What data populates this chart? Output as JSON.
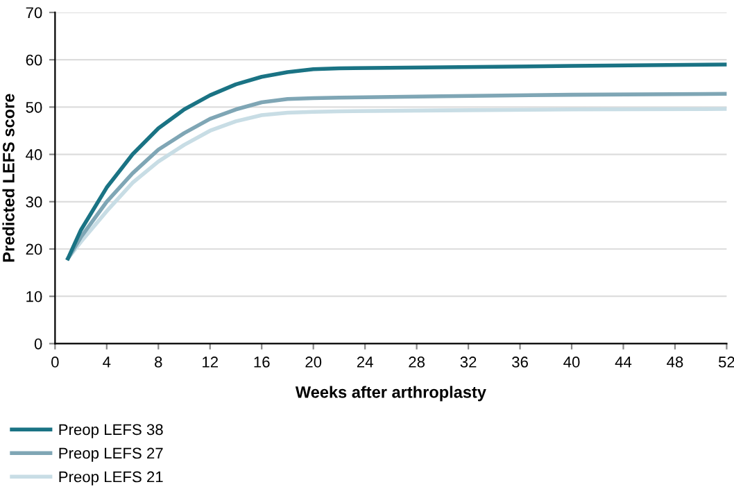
{
  "chart_data": {
    "type": "line",
    "xlabel": "Weeks after arthroplasty",
    "ylabel": "Predicted LEFS score",
    "x": [
      1,
      2,
      4,
      6,
      8,
      10,
      12,
      14,
      16,
      18,
      20,
      22,
      30,
      40,
      52
    ],
    "series": [
      {
        "name": "Preop LEFS 38",
        "color": "#1a7384",
        "values": [
          18,
          24,
          33,
          40,
          45.5,
          49.5,
          52.5,
          54.8,
          56.4,
          57.4,
          58,
          58.2,
          58.4,
          58.7,
          59
        ]
      },
      {
        "name": "Preop LEFS 27",
        "color": "#7fa6b5",
        "values": [
          18,
          22.5,
          30,
          36,
          41,
          44.5,
          47.5,
          49.5,
          51,
          51.7,
          51.9,
          52,
          52.3,
          52.6,
          52.8
        ]
      },
      {
        "name": "Preop LEFS 21",
        "color": "#c8dde5",
        "values": [
          18,
          21.5,
          28,
          34,
          38.5,
          42,
          45,
          47,
          48.3,
          48.8,
          49,
          49.1,
          49.3,
          49.5,
          49.6
        ]
      }
    ],
    "xlim": [
      0,
      52
    ],
    "xticks": [
      0,
      4,
      8,
      12,
      16,
      20,
      24,
      28,
      32,
      36,
      40,
      44,
      48,
      52
    ],
    "ylim": [
      0,
      70
    ],
    "yticks": [
      0,
      10,
      20,
      30,
      40,
      50,
      60,
      70
    ],
    "grid": "y",
    "legend": "bottom",
    "marker": "none",
    "line_style": "solid"
  }
}
